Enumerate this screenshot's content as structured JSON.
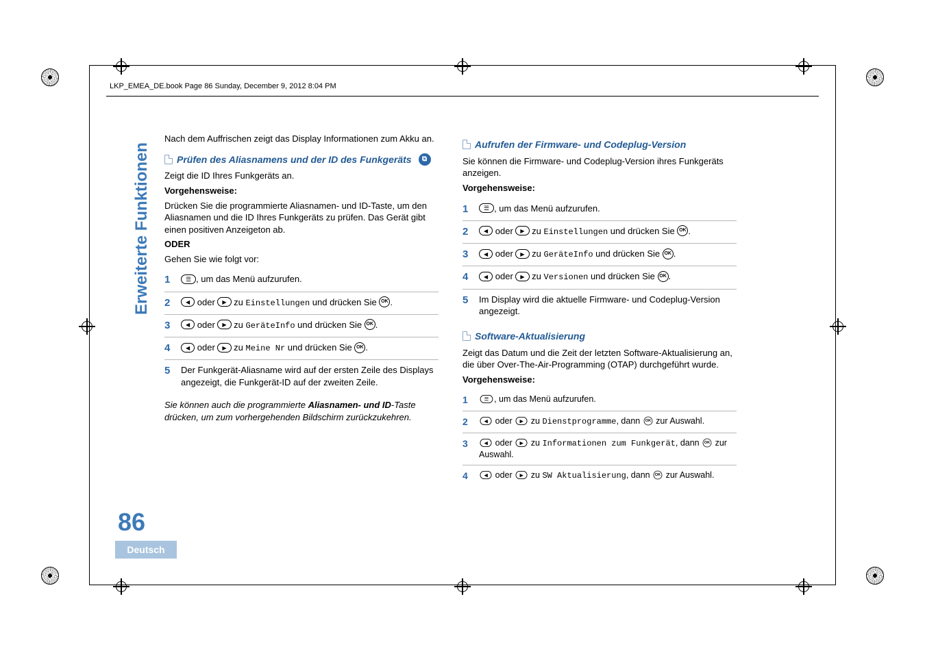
{
  "meta": {
    "book_line": "LKP_EMEA_DE.book  Page 86  Sunday, December 9, 2012  8:04 PM"
  },
  "sidebar": {
    "tab_title": "Erweiterte Funktionen",
    "page_number": "86",
    "language": "Deutsch"
  },
  "left": {
    "intro": "Nach dem Auffrischen zeigt das Display Informationen zum Akku an.",
    "sec1_title": "Prüfen des Aliasnamens und der ID des Funkgeräts",
    "sec1_p1": "Zeigt die ID Ihres Funkgeräts an.",
    "vorg": "Vorgehensweise:",
    "sec1_p2": "Drücken Sie die programmierte Aliasnamen- und ID-Taste, um den Aliasnamen und die ID Ihres Funkgeräts zu prüfen. Das Gerät gibt einen positiven Anzeigeton ab.",
    "oder": "ODER",
    "sec1_p3": "Gehen Sie wie folgt vor:",
    "step1": ", um das Menü aufzurufen.",
    "step_oder": " oder ",
    "step_zu": " zu ",
    "step_druck": " und drücken Sie ",
    "menu_einst": "Einstellungen",
    "menu_gerinfo": "GeräteInfo",
    "menu_meine": "Meine Nr",
    "step5": "Der Funkgerät-Aliasname wird auf der ersten Zeile des Displays angezeigt, die Funkgerät-ID auf der zweiten Zeile.",
    "note_a": "Sie können auch die programmierte ",
    "note_b": "Aliasnamen- und ID",
    "note_c": "-Taste drücken, um zum vorhergehenden Bildschirm zurückzukehren."
  },
  "right": {
    "sec2_title": "Aufrufen der Firmware- und Codeplug-Version",
    "sec2_p1": "Sie können die Firmware- und Codeplug-Version ihres Funkgeräts anzeigen.",
    "vorg": "Vorgehensweise:",
    "step1": ", um das Menü aufzurufen.",
    "menu_einst": "Einstellungen",
    "menu_gerinfo": "GeräteInfo",
    "menu_ver": "Versionen",
    "step5": "Im Display wird die aktuelle Firmware- und Codeplug-Version angezeigt.",
    "sec3_title": "Software-Aktualisierung",
    "sec3_p1": "Zeigt das Datum und die Zeit der letzten Software-Aktualisierung an, die über Over-The-Air-Programming (OTAP) durchgeführt wurde.",
    "s3_step1": ", um das Menü aufzurufen.",
    "s3_dann": ", dann ",
    "s3_ausw": " zur Auswahl.",
    "menu_dienst": "Dienstprogramme",
    "menu_info": "Informationen zum Funkgerät",
    "menu_sw": "SW Aktualisierung"
  },
  "colors": {
    "accent": "#2b68a8",
    "sidebar_text": "#3d7ab8",
    "tab_bg": "#a9c4de",
    "rule": "#b8b8b8"
  }
}
